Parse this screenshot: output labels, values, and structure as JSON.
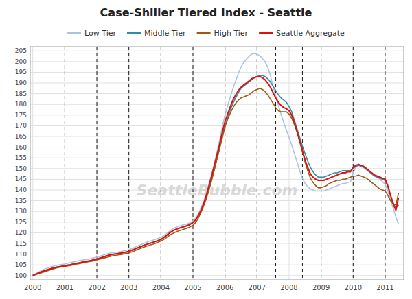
{
  "chart_data": {
    "type": "line",
    "title": "Case-Shiller Tiered Index - Seattle",
    "watermark": "SeattleBubble.com",
    "legend": "top",
    "grid": true,
    "xlim": [
      1999.92,
      2011.58
    ],
    "xticks": [
      2000,
      2001,
      2002,
      2003,
      2004,
      2005,
      2006,
      2007,
      2008,
      2009,
      2010,
      2011
    ],
    "ylim": [
      98,
      207
    ],
    "yticks": [
      100,
      105,
      110,
      115,
      120,
      125,
      130,
      135,
      140,
      145,
      150,
      155,
      160,
      165,
      170,
      175,
      180,
      185,
      190,
      195,
      200,
      205
    ],
    "vertical_lines": [
      2001.0,
      2002.0,
      2003.0,
      2004.0,
      2005.0,
      2006.0,
      2007.0,
      2007.583,
      2008.417,
      2009.0,
      2010.0,
      2011.0
    ],
    "x": [
      2000.0,
      2000.083,
      2000.167,
      2000.25,
      2000.333,
      2000.417,
      2000.5,
      2000.583,
      2000.667,
      2000.75,
      2000.833,
      2000.917,
      2001.0,
      2001.083,
      2001.167,
      2001.25,
      2001.333,
      2001.417,
      2001.5,
      2001.583,
      2001.667,
      2001.75,
      2001.833,
      2001.917,
      2002.0,
      2002.083,
      2002.167,
      2002.25,
      2002.333,
      2002.417,
      2002.5,
      2002.583,
      2002.667,
      2002.75,
      2002.833,
      2002.917,
      2003.0,
      2003.083,
      2003.167,
      2003.25,
      2003.333,
      2003.417,
      2003.5,
      2003.583,
      2003.667,
      2003.75,
      2003.833,
      2003.917,
      2004.0,
      2004.083,
      2004.167,
      2004.25,
      2004.333,
      2004.417,
      2004.5,
      2004.583,
      2004.667,
      2004.75,
      2004.833,
      2004.917,
      2005.0,
      2005.083,
      2005.167,
      2005.25,
      2005.333,
      2005.417,
      2005.5,
      2005.583,
      2005.667,
      2005.75,
      2005.833,
      2005.917,
      2006.0,
      2006.083,
      2006.167,
      2006.25,
      2006.333,
      2006.417,
      2006.5,
      2006.583,
      2006.667,
      2006.75,
      2006.833,
      2006.917,
      2007.0,
      2007.083,
      2007.167,
      2007.25,
      2007.333,
      2007.417,
      2007.5,
      2007.583,
      2007.667,
      2007.75,
      2007.833,
      2007.917,
      2008.0,
      2008.083,
      2008.167,
      2008.25,
      2008.333,
      2008.417,
      2008.5,
      2008.583,
      2008.667,
      2008.75,
      2008.833,
      2008.917,
      2009.0,
      2009.083,
      2009.167,
      2009.25,
      2009.333,
      2009.417,
      2009.5,
      2009.583,
      2009.667,
      2009.75,
      2009.833,
      2009.917,
      2010.0,
      2010.083,
      2010.167,
      2010.25,
      2010.333,
      2010.417,
      2010.5,
      2010.583,
      2010.667,
      2010.75,
      2010.833,
      2010.917,
      2011.0,
      2011.083,
      2011.167,
      2011.25,
      2011.333,
      2011.417
    ],
    "series": [
      {
        "name": "Low Tier",
        "color": "#aac4e0",
        "values": [
          100.0,
          100.8,
          101.5,
          102.2,
          102.8,
          103.3,
          103.8,
          104.2,
          104.5,
          104.8,
          105.0,
          105.2,
          105.4,
          105.7,
          106.0,
          106.3,
          106.6,
          106.9,
          107.1,
          107.3,
          107.5,
          107.7,
          108.0,
          108.3,
          108.6,
          109.0,
          109.4,
          109.8,
          110.2,
          110.5,
          110.7,
          110.9,
          111.0,
          111.2,
          111.5,
          111.8,
          112.1,
          112.6,
          113.1,
          113.6,
          114.2,
          114.7,
          115.2,
          115.7,
          116.1,
          116.5,
          116.9,
          117.4,
          117.9,
          118.6,
          119.5,
          120.5,
          121.4,
          122.2,
          122.8,
          123.2,
          123.6,
          123.9,
          124.2,
          124.8,
          125.5,
          126.8,
          128.8,
          131.5,
          134.8,
          138.5,
          143.0,
          147.5,
          152.5,
          158.0,
          163.5,
          169.5,
          175.0,
          179.5,
          183.5,
          187.5,
          191.0,
          194.5,
          197.5,
          199.5,
          201.0,
          202.5,
          203.5,
          203.8,
          203.5,
          202.8,
          201.5,
          200.0,
          197.5,
          193.5,
          188.5,
          184.0,
          179.5,
          175.5,
          171.5,
          168.0,
          164.5,
          161.0,
          157.0,
          153.0,
          149.0,
          145.5,
          143.0,
          141.5,
          140.5,
          140.0,
          139.5,
          139.5,
          139.5,
          139.5,
          140.0,
          140.5,
          141.0,
          141.5,
          142.0,
          142.5,
          143.0,
          143.0,
          143.5,
          143.8,
          148.0,
          150.5,
          151.5,
          151.5,
          151.0,
          150.0,
          149.0,
          148.0,
          147.0,
          146.0,
          145.0,
          144.0,
          142.5,
          139.5,
          135.5,
          131.5,
          127.5,
          124.0
        ]
      },
      {
        "name": "Middle Tier",
        "color": "#2e8fa0",
        "values": [
          100.0,
          100.6,
          101.2,
          101.7,
          102.2,
          102.6,
          103.0,
          103.4,
          103.7,
          104.0,
          104.2,
          104.4,
          104.6,
          104.9,
          105.1,
          105.4,
          105.7,
          105.9,
          106.1,
          106.4,
          106.6,
          106.9,
          107.1,
          107.4,
          107.7,
          108.1,
          108.5,
          108.9,
          109.3,
          109.6,
          109.9,
          110.1,
          110.3,
          110.5,
          110.7,
          111.0,
          111.3,
          111.8,
          112.3,
          112.8,
          113.3,
          113.8,
          114.3,
          114.7,
          115.1,
          115.5,
          115.9,
          116.4,
          116.9,
          117.7,
          118.6,
          119.6,
          120.5,
          121.2,
          121.8,
          122.2,
          122.6,
          123.0,
          123.4,
          124.0,
          124.8,
          126.0,
          128.0,
          130.5,
          133.5,
          137.0,
          141.0,
          145.0,
          149.5,
          154.5,
          159.5,
          165.0,
          170.0,
          174.0,
          177.5,
          180.5,
          183.0,
          185.5,
          187.5,
          188.5,
          189.5,
          190.5,
          191.5,
          192.5,
          193.0,
          193.5,
          193.5,
          193.0,
          192.0,
          190.5,
          188.5,
          186.5,
          184.5,
          183.0,
          182.0,
          181.0,
          179.0,
          176.5,
          172.5,
          168.5,
          164.5,
          160.5,
          157.0,
          153.5,
          150.5,
          148.5,
          147.0,
          146.0,
          146.0,
          146.0,
          146.5,
          147.0,
          147.5,
          148.0,
          148.0,
          148.5,
          149.0,
          149.0,
          149.0,
          149.0,
          150.0,
          151.0,
          151.5,
          151.0,
          150.5,
          149.5,
          148.5,
          147.5,
          146.5,
          146.0,
          145.5,
          145.0,
          144.5,
          141.5,
          137.5,
          134.0,
          131.5,
          133.0
        ]
      },
      {
        "name": "High Tier",
        "color": "#a05a10",
        "values": [
          100.0,
          100.4,
          100.8,
          101.2,
          101.6,
          102.0,
          102.4,
          102.8,
          103.2,
          103.6,
          103.9,
          104.1,
          104.3,
          104.5,
          104.7,
          105.0,
          105.3,
          105.5,
          105.7,
          106.0,
          106.2,
          106.5,
          106.7,
          107.0,
          107.3,
          107.6,
          108.0,
          108.3,
          108.6,
          108.9,
          109.2,
          109.4,
          109.6,
          109.8,
          110.0,
          110.3,
          110.6,
          111.0,
          111.5,
          112.0,
          112.5,
          113.0,
          113.5,
          113.9,
          114.3,
          114.7,
          115.1,
          115.6,
          116.1,
          116.8,
          117.7,
          118.6,
          119.4,
          120.0,
          120.6,
          121.0,
          121.4,
          121.8,
          122.2,
          122.8,
          123.5,
          124.8,
          126.8,
          129.5,
          132.5,
          136.0,
          140.0,
          144.5,
          149.5,
          154.5,
          159.5,
          164.5,
          169.5,
          173.0,
          176.0,
          178.5,
          180.5,
          182.0,
          183.0,
          183.5,
          184.0,
          184.5,
          185.5,
          186.5,
          187.0,
          187.5,
          187.0,
          186.0,
          184.5,
          182.5,
          180.5,
          178.5,
          177.0,
          176.5,
          176.5,
          176.5,
          175.5,
          173.5,
          170.5,
          167.0,
          162.5,
          158.0,
          153.0,
          149.0,
          145.5,
          143.5,
          142.0,
          141.0,
          141.0,
          141.5,
          142.0,
          143.0,
          143.5,
          144.0,
          144.5,
          144.5,
          145.0,
          145.0,
          145.5,
          146.0,
          146.5,
          146.5,
          147.0,
          146.5,
          146.0,
          145.5,
          144.5,
          143.5,
          142.5,
          141.5,
          140.5,
          140.0,
          139.5,
          137.5,
          135.0,
          133.5,
          133.0,
          138.5
        ]
      },
      {
        "name": "Seattle Aggregate",
        "color": "#e01010",
        "values": [
          100.0,
          100.6,
          101.1,
          101.6,
          102.1,
          102.5,
          102.9,
          103.3,
          103.6,
          103.9,
          104.1,
          104.3,
          104.5,
          104.8,
          105.0,
          105.3,
          105.6,
          105.8,
          106.1,
          106.3,
          106.6,
          106.8,
          107.1,
          107.4,
          107.7,
          108.1,
          108.5,
          108.9,
          109.3,
          109.6,
          109.9,
          110.1,
          110.3,
          110.5,
          110.7,
          111.0,
          111.3,
          111.8,
          112.3,
          112.8,
          113.3,
          113.8,
          114.3,
          114.7,
          115.1,
          115.5,
          115.9,
          116.4,
          116.9,
          117.7,
          118.7,
          119.7,
          120.6,
          121.3,
          121.8,
          122.2,
          122.6,
          123.0,
          123.4,
          124.0,
          124.8,
          126.0,
          128.0,
          130.5,
          133.5,
          137.5,
          142.0,
          146.5,
          151.5,
          156.5,
          161.5,
          167.0,
          172.0,
          175.5,
          179.0,
          182.0,
          184.5,
          186.5,
          188.0,
          189.0,
          190.0,
          191.0,
          192.0,
          192.5,
          193.0,
          193.0,
          192.5,
          191.5,
          190.0,
          188.0,
          185.5,
          183.0,
          181.0,
          179.5,
          178.5,
          178.0,
          177.0,
          175.0,
          171.5,
          167.5,
          163.0,
          158.5,
          154.0,
          150.5,
          147.5,
          146.0,
          145.0,
          144.5,
          144.5,
          144.5,
          145.0,
          145.5,
          146.0,
          146.5,
          147.0,
          147.5,
          148.0,
          148.0,
          148.5,
          148.5,
          150.5,
          151.5,
          152.0,
          151.5,
          151.0,
          150.0,
          149.0,
          148.0,
          147.0,
          146.5,
          146.0,
          145.5,
          145.0,
          142.0,
          137.5,
          133.5,
          130.5,
          136.5
        ]
      }
    ]
  }
}
